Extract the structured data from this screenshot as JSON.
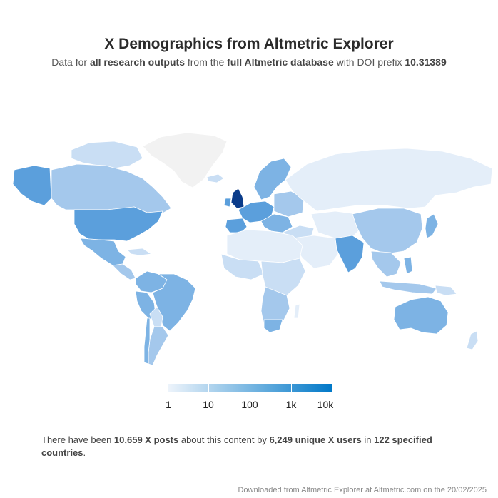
{
  "title": "X Demographics from Altmetric Explorer",
  "subtitle": {
    "p1": "Data for ",
    "b1": "all research outputs",
    "p2": " from the ",
    "b2": "full Altmetric database",
    "p3": " with DOI prefix ",
    "b3": "10.31389"
  },
  "legend": {
    "labels": [
      "1",
      "10",
      "100",
      "1k",
      "10k"
    ],
    "color_low": "#eef4fb",
    "color_high": "#0078c8"
  },
  "summary": {
    "p1": "There have been ",
    "posts": "10,659 X posts",
    "p2": " about this content by ",
    "users": "6,249 unique X users",
    "p3": " in ",
    "countries": "122 specified countries",
    "p4": "."
  },
  "footer": "Downloaded from Altmetric Explorer at Altmetric.com on the 20/02/2025",
  "colors": {
    "no_data": "#f2f2f2",
    "level1": "#e4eef9",
    "level2": "#c9def4",
    "level3": "#a4c8ec",
    "level4": "#7db3e4",
    "level5": "#5b9fdc",
    "level6": "#2f7fc9",
    "top": "#0b3c8a"
  }
}
